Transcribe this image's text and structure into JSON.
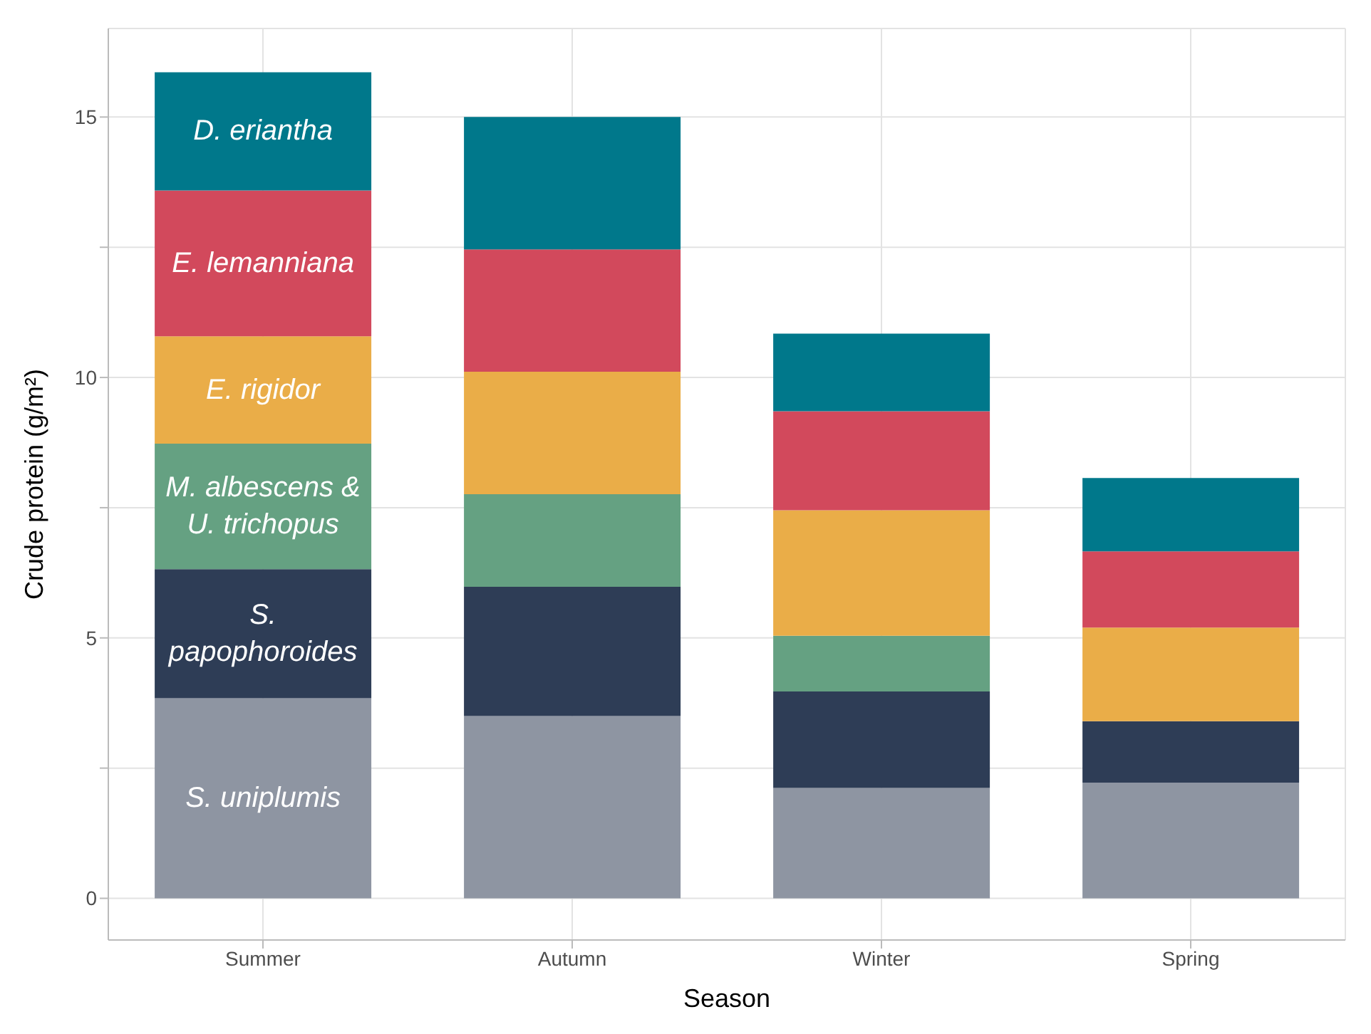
{
  "chart_data": {
    "type": "bar",
    "stacked": true,
    "xlabel": "Season",
    "ylabel": "Crude protein (g/m²)",
    "categories": [
      "Summer",
      "Autumn",
      "Winter",
      "Spring"
    ],
    "series": [
      {
        "name": "S. uniplumis",
        "color": "#8e95a2",
        "values": [
          3.84,
          3.5,
          2.12,
          2.22
        ]
      },
      {
        "name": "S. papophoroides",
        "color": "#2e3d56",
        "values": [
          2.48,
          2.48,
          1.85,
          1.18
        ]
      },
      {
        "name": "M. albescens & U. trichopus",
        "color": "#65a182",
        "values": [
          2.41,
          1.78,
          1.07,
          0
        ]
      },
      {
        "name": "E. rigidor",
        "color": "#eaad48",
        "values": [
          2.06,
          2.35,
          2.41,
          1.8
        ]
      },
      {
        "name": "E. lemanniana",
        "color": "#d2495c",
        "values": [
          2.8,
          2.35,
          1.9,
          1.46
        ]
      },
      {
        "name": "D. eriantha",
        "color": "#00788b",
        "values": [
          2.27,
          2.54,
          1.49,
          1.41
        ]
      }
    ],
    "ylim": [
      -0.8,
      16.7
    ],
    "yticks": [
      0,
      {
        "value": 2.5,
        "label": null
      },
      5,
      {
        "value": 7.5,
        "label": null
      },
      10,
      {
        "value": 12.5,
        "label": null
      },
      15
    ],
    "grid": true,
    "legend": false
  }
}
